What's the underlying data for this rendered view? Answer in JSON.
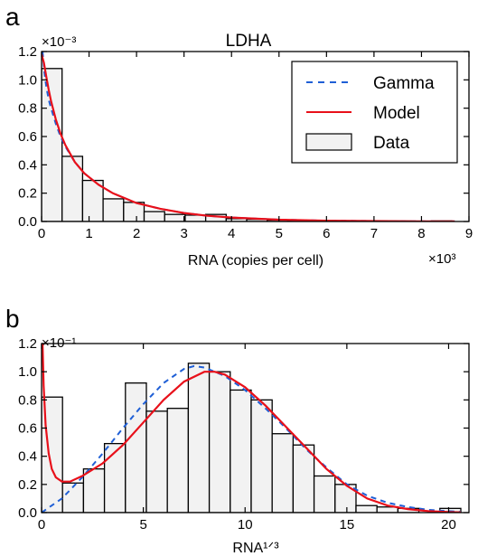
{
  "chart_data": [
    {
      "panel": "a",
      "type": "bar",
      "title": "LDHA",
      "xlabel": "RNA (copies per cell)",
      "x_multiplier": "×10³",
      "y_multiplier": "×10⁻³",
      "xlim": [
        0,
        9000
      ],
      "ylim": [
        0,
        1.2
      ],
      "xticks": [
        0,
        1,
        2,
        3,
        4,
        5,
        6,
        7,
        8,
        9
      ],
      "yticks": [
        "0.0",
        "0.2",
        "0.4",
        "0.6",
        "0.8",
        "1.0",
        "1.2"
      ],
      "xtick_values": [
        0,
        1000,
        2000,
        3000,
        4000,
        5000,
        6000,
        7000,
        8000,
        9000
      ],
      "ytick_values": [
        0,
        0.2,
        0.4,
        0.6,
        0.8,
        1.0,
        1.2
      ],
      "legend": {
        "placement": "top-right",
        "entries": [
          {
            "label": "Gamma",
            "style": "dashed",
            "color": "#1f5fd6"
          },
          {
            "label": "Model",
            "style": "solid",
            "color": "#e8101a"
          },
          {
            "label": "Data",
            "style": "bar",
            "color": "#f2f2f2"
          }
        ]
      },
      "bin_edges": [
        0,
        432,
        864,
        1296,
        1728,
        2160,
        2592,
        3024,
        3456,
        3888,
        4320,
        4752,
        5184,
        5616,
        6048,
        6480,
        6912,
        7344,
        7776,
        8208,
        8640
      ],
      "values": [
        1.08,
        0.46,
        0.29,
        0.16,
        0.135,
        0.07,
        0.05,
        0.045,
        0.05,
        0.02,
        0.015,
        0.01,
        0.008,
        0.006,
        0.005,
        0.004,
        0.003,
        0.003,
        0.002,
        0.004
      ],
      "series": [
        {
          "name": "Gamma",
          "x": [
            20,
            60,
            100,
            150,
            200,
            300,
            400,
            500,
            700,
            900,
            1200,
            1500,
            2000,
            2500,
            3000,
            3500,
            4000,
            5000,
            6000,
            7000,
            8000,
            8700
          ],
          "y": [
            1.2,
            1.05,
            0.95,
            0.86,
            0.8,
            0.69,
            0.6,
            0.53,
            0.42,
            0.34,
            0.26,
            0.2,
            0.13,
            0.09,
            0.06,
            0.04,
            0.028,
            0.013,
            0.006,
            0.003,
            0.001,
            0.0005
          ]
        },
        {
          "name": "Model",
          "x": [
            0,
            50,
            100,
            150,
            200,
            300,
            400,
            500,
            700,
            900,
            1200,
            1500,
            2000,
            2500,
            3000,
            3500,
            4000,
            5000,
            6000,
            7000,
            8000,
            8700
          ],
          "y": [
            1.18,
            1.12,
            1.02,
            0.93,
            0.85,
            0.72,
            0.62,
            0.54,
            0.42,
            0.34,
            0.26,
            0.2,
            0.13,
            0.09,
            0.06,
            0.04,
            0.028,
            0.013,
            0.006,
            0.003,
            0.001,
            0.0005
          ]
        }
      ]
    },
    {
      "panel": "b",
      "type": "bar",
      "title": "",
      "xlabel": "RNA¹ᐟ³",
      "y_multiplier": "×10⁻¹",
      "xlim": [
        0,
        21
      ],
      "ylim": [
        0,
        1.2
      ],
      "xticks": [
        "0",
        "5",
        "10",
        "15",
        "20"
      ],
      "yticks": [
        "0.0",
        "0.2",
        "0.4",
        "0.6",
        "0.8",
        "1.0",
        "1.2"
      ],
      "xtick_values": [
        0,
        5,
        10,
        15,
        20
      ],
      "ytick_values": [
        0,
        0.2,
        0.4,
        0.6,
        0.8,
        1.0,
        1.2
      ],
      "bin_edges": [
        0,
        1.03,
        2.06,
        3.09,
        4.12,
        5.15,
        6.18,
        7.21,
        8.24,
        9.27,
        10.3,
        11.33,
        12.36,
        13.39,
        14.42,
        15.45,
        16.48,
        17.51,
        18.54,
        19.57,
        20.6
      ],
      "values": [
        0.82,
        0.21,
        0.31,
        0.49,
        0.92,
        0.72,
        0.74,
        1.06,
        1.0,
        0.87,
        0.8,
        0.56,
        0.48,
        0.26,
        0.2,
        0.05,
        0.04,
        0.03,
        0.0,
        0.03
      ],
      "series": [
        {
          "name": "Gamma",
          "x": [
            0,
            1,
            2,
            3,
            4,
            5,
            6,
            7,
            7.5,
            8,
            9,
            10,
            11,
            12,
            13,
            14,
            15,
            16,
            17,
            18,
            19,
            20,
            20.6
          ],
          "y": [
            0,
            0.1,
            0.25,
            0.42,
            0.6,
            0.77,
            0.92,
            1.02,
            1.04,
            1.03,
            0.97,
            0.87,
            0.74,
            0.6,
            0.45,
            0.32,
            0.2,
            0.12,
            0.07,
            0.04,
            0.02,
            0.01,
            0.005
          ]
        },
        {
          "name": "Model",
          "x": [
            0.05,
            0.1,
            0.2,
            0.35,
            0.5,
            0.7,
            1.0,
            1.4,
            2,
            3,
            4,
            5,
            6,
            7,
            8,
            8.5,
            9,
            10,
            11,
            12,
            13,
            14,
            15,
            16,
            17,
            18,
            19,
            20,
            20.6
          ],
          "y": [
            1.2,
            0.9,
            0.62,
            0.42,
            0.31,
            0.25,
            0.22,
            0.22,
            0.26,
            0.35,
            0.48,
            0.64,
            0.8,
            0.93,
            1.0,
            1.0,
            0.98,
            0.89,
            0.76,
            0.61,
            0.46,
            0.31,
            0.19,
            0.1,
            0.05,
            0.025,
            0.01,
            0.004,
            0.002
          ]
        }
      ]
    }
  ]
}
